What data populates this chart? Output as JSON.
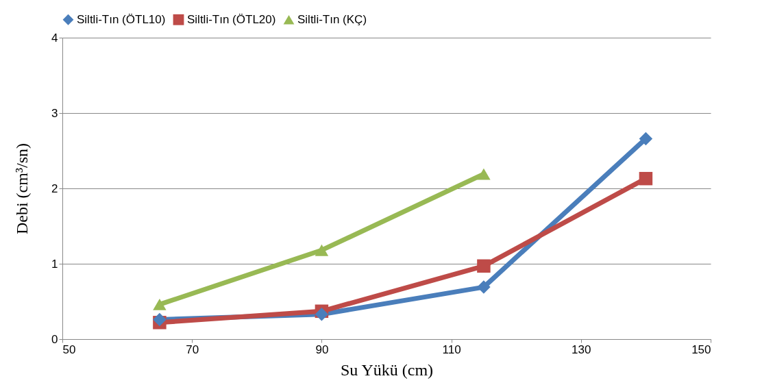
{
  "chart_data": {
    "type": "line",
    "xlabel": "Su Yükü (cm)",
    "ylabel": "Debi (cm³/sn)",
    "x": [
      65,
      90,
      115,
      140
    ],
    "series": [
      {
        "name": "Siltli-Tın (ÖTL10)",
        "color": "#4a7ebb",
        "marker": "diamond",
        "values": [
          0.26,
          0.33,
          0.69,
          2.66
        ]
      },
      {
        "name": "Siltli-Tın (ÖTL20)",
        "color": "#be4b48",
        "marker": "square",
        "values": [
          0.22,
          0.37,
          0.97,
          2.13
        ]
      },
      {
        "name": "Siltli-Tın (KÇ)",
        "color": "#98b954",
        "marker": "triangle",
        "values": [
          0.46,
          1.18,
          2.19,
          null
        ]
      }
    ],
    "xlim": [
      50,
      150
    ],
    "xticks": [
      50,
      70,
      90,
      110,
      130,
      150
    ],
    "ylim": [
      0,
      4
    ],
    "yticks": [
      0,
      1,
      2,
      3,
      4
    ],
    "grid": "y",
    "legend": "top",
    "line_style": "solid"
  }
}
